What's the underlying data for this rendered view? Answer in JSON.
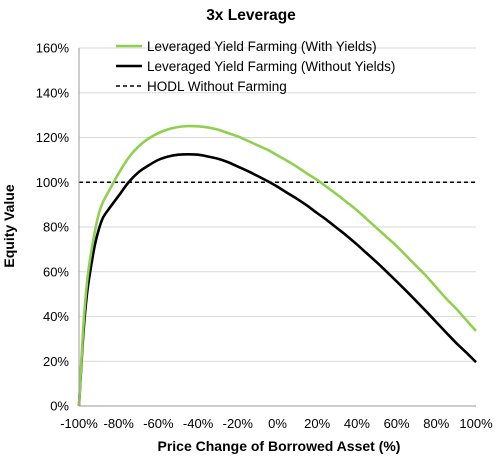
{
  "chart_data": {
    "type": "line",
    "title": "3x Leverage",
    "xlabel": "Price Change of Borrowed Asset (%)",
    "ylabel": "Equity Value",
    "xlim": [
      -100,
      100
    ],
    "ylim": [
      0,
      160
    ],
    "x_ticks": [
      -100,
      -80,
      -60,
      -40,
      -20,
      0,
      20,
      40,
      60,
      80,
      100
    ],
    "y_ticks": [
      0,
      20,
      40,
      60,
      80,
      100,
      120,
      140,
      160
    ],
    "x_tick_labels": [
      "-100%",
      "-80%",
      "-60%",
      "-40%",
      "-20%",
      "0%",
      "20%",
      "40%",
      "60%",
      "80%",
      "100%"
    ],
    "y_tick_labels": [
      "0%",
      "20%",
      "40%",
      "60%",
      "80%",
      "100%",
      "120%",
      "140%",
      "160%"
    ],
    "grid": "horizontal",
    "legend_position": "top-right",
    "series": [
      {
        "name": "Leveraged Yield Farming (With Yields)",
        "color": "#8fd14f",
        "style": "solid",
        "x": [
          -100,
          -98,
          -96,
          -94,
          -92,
          -90,
          -88,
          -85,
          -80,
          -75,
          -70,
          -65,
          -60,
          -55,
          -50,
          -45,
          -40,
          -35,
          -30,
          -25,
          -20,
          -15,
          -10,
          -5,
          0,
          5,
          10,
          15,
          20,
          25,
          30,
          35,
          40,
          45,
          50,
          55,
          60,
          65,
          70,
          75,
          80,
          85,
          90,
          95,
          100
        ],
        "y": [
          0,
          33,
          55,
          68,
          78,
          86,
          91,
          96,
          104,
          111,
          116,
          119.5,
          122,
          123.7,
          124.7,
          125.1,
          125,
          124.5,
          123.5,
          122,
          120.5,
          118.5,
          116.5,
          114.5,
          112,
          109.5,
          106.8,
          103.8,
          101,
          97.8,
          94.5,
          91,
          87.5,
          83.5,
          79.5,
          75.5,
          71.5,
          67,
          62.5,
          58,
          53,
          48,
          43.5,
          38.5,
          33.5
        ]
      },
      {
        "name": "Leveraged Yield Farming (Without Yields)",
        "color": "#000000",
        "style": "solid",
        "x": [
          -100,
          -98,
          -96,
          -94,
          -92,
          -90,
          -88,
          -85,
          -80,
          -75,
          -70,
          -65,
          -60,
          -55,
          -50,
          -45,
          -40,
          -35,
          -30,
          -25,
          -20,
          -15,
          -10,
          -5,
          0,
          5,
          10,
          15,
          20,
          25,
          30,
          35,
          40,
          45,
          50,
          55,
          60,
          65,
          70,
          75,
          80,
          85,
          90,
          95,
          100
        ],
        "y": [
          0,
          30,
          50,
          62,
          72,
          79,
          84,
          88,
          94,
          100,
          104.5,
          107.5,
          110,
          111.5,
          112.3,
          112.5,
          112.3,
          111.5,
          110.5,
          109,
          107,
          105,
          102.8,
          100.5,
          98,
          95.2,
          92.5,
          89.5,
          86.2,
          83,
          79.5,
          76,
          72.2,
          68.2,
          64.2,
          60,
          55.7,
          51.3,
          46.8,
          42.2,
          37.5,
          32.8,
          28.2,
          24,
          19.6
        ]
      },
      {
        "name": "HODL Without Farming",
        "color": "#000000",
        "style": "dashed",
        "x": [
          -100,
          100
        ],
        "y": [
          100,
          100
        ]
      }
    ]
  }
}
